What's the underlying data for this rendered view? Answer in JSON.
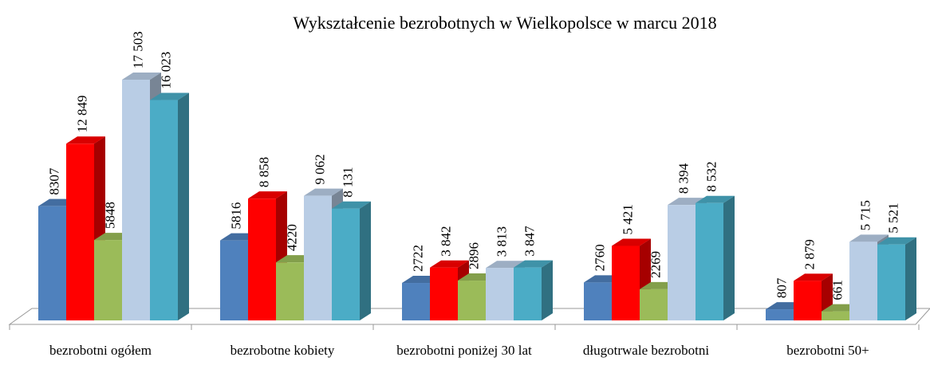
{
  "chart_data": {
    "type": "bar3d",
    "title": "Wykształcenie bezrobotnych w Wielkopolsce w marcu 2018",
    "categories": [
      "bezrobotni ogółem",
      "bezrobotne kobiety",
      "bezrobotni poniżej 30 lat",
      "długotrwale bezrobotni",
      "bezrobotni 50+"
    ],
    "series": [
      {
        "color": "#4f81bd",
        "values": [
          8307,
          5816,
          2722,
          2760,
          807
        ],
        "value_labels": [
          "8307",
          "5816",
          "2722",
          "2760",
          "807"
        ]
      },
      {
        "color": "#ff0000",
        "values": [
          12849,
          8858,
          3842,
          5421,
          2879
        ],
        "value_labels": [
          "12 849",
          "8 858",
          "3 842",
          "5 421",
          "2 879"
        ]
      },
      {
        "color": "#9bbb59",
        "values": [
          5848,
          4220,
          2896,
          2269,
          661
        ],
        "value_labels": [
          "5848",
          "4220",
          "2896",
          "2269",
          "661"
        ]
      },
      {
        "color": "#b9cde5",
        "values": [
          17503,
          9062,
          3813,
          8394,
          5715
        ],
        "value_labels": [
          "17 503",
          "9 062",
          "3 813",
          "8 394",
          "5 715"
        ]
      },
      {
        "color": "#4bacc6",
        "values": [
          16023,
          8131,
          3847,
          8532,
          5521
        ],
        "value_labels": [
          "16 023",
          "8 131",
          "3 847",
          "8 532",
          "5 521"
        ]
      }
    ]
  }
}
